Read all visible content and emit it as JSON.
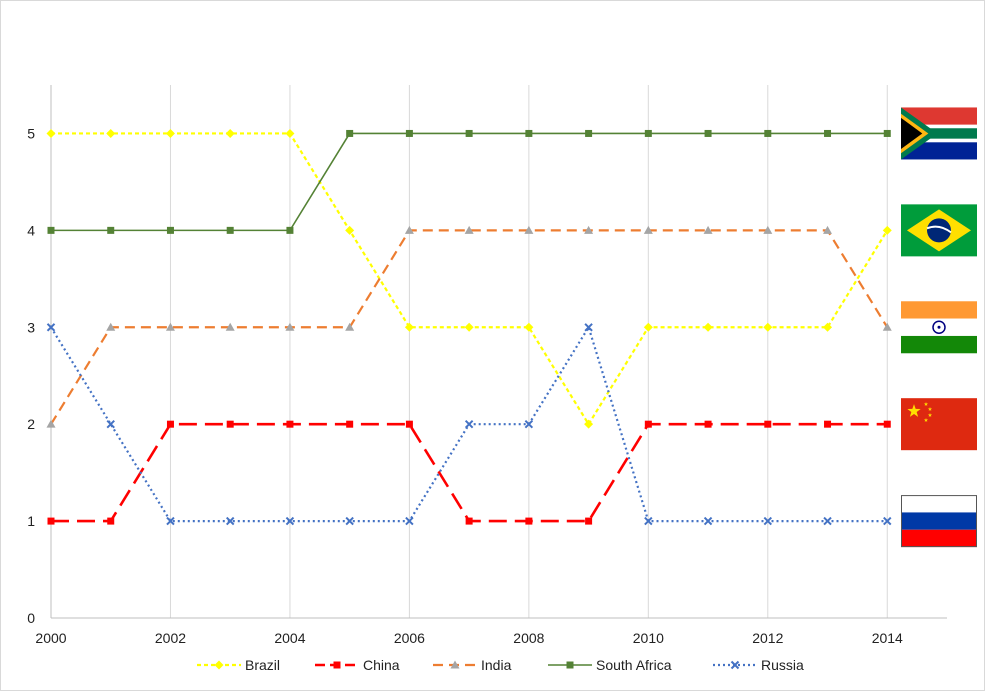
{
  "chart_data": {
    "type": "line",
    "title": "",
    "xlabel": "",
    "ylabel": "",
    "x": [
      2000,
      2001,
      2002,
      2003,
      2004,
      2005,
      2006,
      2007,
      2008,
      2009,
      2010,
      2011,
      2012,
      2013,
      2014
    ],
    "x_ticks": [
      "2000",
      "2002",
      "2004",
      "2006",
      "2008",
      "2010",
      "2012",
      "2014"
    ],
    "y_ticks": [
      "0",
      "1",
      "2",
      "3",
      "4",
      "5"
    ],
    "xlim": [
      2000,
      2015
    ],
    "ylim": [
      0,
      5.5
    ],
    "grid": "vertical",
    "legend_position": "bottom",
    "series": [
      {
        "name": "Brazil",
        "color": "#ffff00",
        "dash": "dotted",
        "marker": "diamond",
        "values": [
          5,
          5,
          5,
          5,
          5,
          4,
          3,
          3,
          3,
          2,
          3,
          3,
          3,
          3,
          4
        ]
      },
      {
        "name": "China",
        "color": "#ff0000",
        "dash": "long-dash",
        "marker": "square",
        "values": [
          1,
          1,
          2,
          2,
          2,
          2,
          2,
          1,
          1,
          1,
          2,
          2,
          2,
          2,
          2
        ]
      },
      {
        "name": "India",
        "color": "#ed7d31",
        "dash": "dash",
        "marker": "triangle",
        "values": [
          2,
          3,
          3,
          3,
          3,
          3,
          4,
          4,
          4,
          4,
          4,
          4,
          4,
          4,
          3
        ]
      },
      {
        "name": "South Africa",
        "color": "#548235",
        "dash": "solid",
        "marker": "square",
        "values": [
          4,
          4,
          4,
          4,
          4,
          5,
          5,
          5,
          5,
          5,
          5,
          5,
          5,
          5,
          5
        ]
      },
      {
        "name": "Russia",
        "color": "#4472c4",
        "dash": "dot",
        "marker": "x",
        "values": [
          3,
          2,
          1,
          1,
          1,
          1,
          1,
          2,
          2,
          3,
          1,
          1,
          1,
          1,
          1
        ]
      }
    ],
    "flags": [
      {
        "country": "South Africa",
        "icon": "south-africa-flag-icon",
        "rank": 5
      },
      {
        "country": "Brazil",
        "icon": "brazil-flag-icon",
        "rank": 4
      },
      {
        "country": "India",
        "icon": "india-flag-icon",
        "rank": 3
      },
      {
        "country": "China",
        "icon": "china-flag-icon",
        "rank": 2
      },
      {
        "country": "Russia",
        "icon": "russia-flag-icon",
        "rank": 1
      }
    ]
  }
}
